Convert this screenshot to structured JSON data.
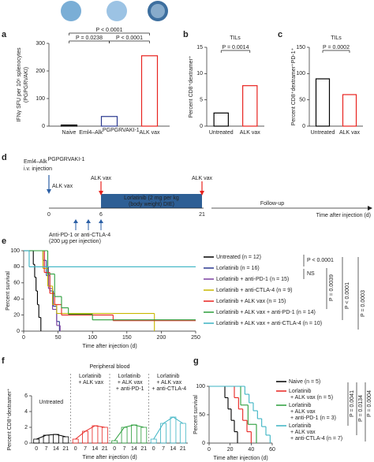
{
  "panel_labels": [
    "a",
    "b",
    "c",
    "d",
    "e",
    "f",
    "g"
  ],
  "schematic": {
    "model": "Eml4–Alk",
    "model_superscript": "PGPGRVAKI-1",
    "injection": "i.v. injection",
    "vax_labels": [
      "ALK vax",
      "ALK vax",
      "ALK vax"
    ],
    "drug": [
      "Lorlatinib (2 mg per kg",
      "(body weight) DIE)"
    ],
    "timeline_days": [
      "0",
      "6",
      "21"
    ],
    "follow_up": "Follow-up",
    "axis_label": "Time after injection (d)",
    "antibody": [
      "Anti-PD-1 or anti-CTLA-4",
      "(200 μg per injection)"
    ]
  },
  "chart_data": [
    {
      "type": "bar",
      "ylabel": "IFNγ SFU per 10⁶ splenocytes",
      "ylabel_sub": "(PGPGRVAKI)",
      "categories": [
        "Naive",
        "Eml4–Alk",
        "ALK vax"
      ],
      "x_label_superscripts": [
        null,
        "PGPGRVAKI-1",
        null
      ],
      "values": [
        4,
        35,
        255
      ],
      "colors": [
        "#000000",
        "#2b3990",
        "#e8231f"
      ],
      "ylim": [
        0,
        300
      ],
      "yticks": [
        0,
        100,
        200,
        300
      ],
      "annotations": [
        "P < 0.0001",
        "P = 0.0238",
        "P < 0.0001"
      ]
    },
    {
      "type": "bar",
      "title": "TILs",
      "ylabel": "Percent CD8⁺dextramer⁺",
      "categories": [
        "Untreated",
        "ALK vax"
      ],
      "values": [
        2.5,
        7.7
      ],
      "colors": [
        "#000000",
        "#e8231f"
      ],
      "ylim": [
        0,
        15
      ],
      "yticks": [
        0,
        5,
        10,
        15
      ],
      "annotations": [
        "P = 0.0014"
      ]
    },
    {
      "type": "bar",
      "title": "TILs",
      "ylabel": "Percent CD8⁺dextramer⁺PD-1⁺",
      "categories": [
        "Untreated",
        "ALK vax"
      ],
      "values": [
        90,
        60
      ],
      "colors": [
        "#000000",
        "#e8231f"
      ],
      "ylim": [
        0,
        150
      ],
      "yticks": [
        0,
        50,
        100,
        150
      ],
      "annotations": [
        "P = 0.0002"
      ]
    },
    {
      "type": "line",
      "step": true,
      "xlabel": "Time after injection (d)",
      "ylabel": "Percent survival",
      "xlim": [
        0,
        250
      ],
      "xticks": [
        0,
        50,
        100,
        150,
        200,
        250
      ],
      "ylim": [
        0,
        100
      ],
      "yticks": [
        0,
        20,
        40,
        60,
        80,
        100
      ],
      "series": [
        {
          "name": "Untreated (n = 12)",
          "color": "#000000",
          "x": [
            0,
            14,
            16,
            18,
            20,
            22,
            25
          ],
          "values": [
            100,
            83,
            67,
            50,
            33,
            17,
            0
          ]
        },
        {
          "name": "Lorlatinib (n = 16)",
          "color": "#2b3990",
          "x": [
            0,
            28,
            33,
            38,
            43,
            48,
            52
          ],
          "values": [
            100,
            88,
            69,
            50,
            31,
            12,
            0
          ]
        },
        {
          "name": "Lorlatinib + anti-PD-1 (n = 15)",
          "color": "#7b3fa0",
          "x": [
            0,
            30,
            36,
            42,
            48,
            53
          ],
          "values": [
            100,
            80,
            53,
            27,
            7,
            0
          ]
        },
        {
          "name": "Lorlatinib + anti-CTLA-4 (n = 9)",
          "color": "#c9b800",
          "x": [
            0,
            28,
            35,
            42,
            48,
            190
          ],
          "values": [
            100,
            78,
            56,
            33,
            22,
            0
          ]
        },
        {
          "name": "Lorlatinib + ALK vax (n = 15)",
          "color": "#e8231f",
          "x": [
            0,
            30,
            38,
            45,
            55,
            130,
            250
          ],
          "values": [
            100,
            73,
            47,
            33,
            20,
            13,
            13
          ]
        },
        {
          "name": "Lorlatinib + ALK vax + anti-PD-1 (n = 14)",
          "color": "#2a9d3a",
          "x": [
            0,
            35,
            45,
            55,
            65,
            100,
            250
          ],
          "values": [
            100,
            71,
            43,
            29,
            21,
            14,
            14
          ]
        },
        {
          "name": "Lorlatinib + ALK vax + anti-CTLA-4 (n = 10)",
          "color": "#3bb3c3",
          "x": [
            0,
            8,
            250
          ],
          "values": [
            100,
            80,
            80
          ]
        }
      ],
      "annotations": [
        "P < 0.0001",
        "NS",
        "P = 0.0039",
        "P < 0.0001",
        "P = 0.0003"
      ]
    },
    {
      "type": "bar",
      "subtitle": "Peripheral blood",
      "ylabel": "Percent CD8⁺dextramer⁺",
      "xlabel": "Time after injection (d)",
      "categories": [
        "0",
        "7",
        "14",
        "21"
      ],
      "ylim": [
        0,
        6
      ],
      "yticks": [
        0,
        2,
        4,
        6
      ],
      "series": [
        {
          "name": "Untreated",
          "color": "#000000",
          "values": [
            0.5,
            1.0,
            1.1,
            0.8
          ]
        },
        {
          "name": "Lorlatinib + ALK vax",
          "color": "#e8231f",
          "values": [
            0.5,
            1.5,
            2.2,
            2.0
          ]
        },
        {
          "name": "Lorlatinib + ALK vax + anti-PD-1",
          "color": "#2a9d3a",
          "values": [
            0.3,
            2.0,
            2.3,
            2.0
          ]
        },
        {
          "name": "Lorlatinib + ALK vax + anti-CTLA-4",
          "color": "#3bb3c3",
          "values": [
            0.5,
            2.5,
            3.3,
            2.5
          ]
        }
      ]
    },
    {
      "type": "line",
      "step": true,
      "xlabel": "Time after injection (d)",
      "ylabel": "Percent survival",
      "xlim": [
        0,
        60
      ],
      "xticks": [
        0,
        20,
        40,
        60
      ],
      "ylim": [
        0,
        100
      ],
      "yticks": [
        0,
        50,
        100
      ],
      "series": [
        {
          "name": "Naive (n = 5)",
          "color": "#000000",
          "x": [
            0,
            15,
            18,
            21,
            24,
            27
          ],
          "values": [
            100,
            80,
            60,
            40,
            20,
            0
          ]
        },
        {
          "name": "Lorlatinib + ALK vax (n = 5)",
          "color": "#e8231f",
          "x": [
            0,
            24,
            28,
            32,
            36,
            40
          ],
          "values": [
            100,
            80,
            60,
            40,
            20,
            0
          ]
        },
        {
          "name": "Lorlatinib + ALK vax + anti-PD-1 (n = 3)",
          "color": "#2a9d3a",
          "x": [
            0,
            30,
            37,
            45
          ],
          "values": [
            100,
            67,
            33,
            0
          ]
        },
        {
          "name": "Lorlatinib + ALK vax + anti-CTLA-4 (n = 7)",
          "color": "#3bb3c3",
          "x": [
            0,
            34,
            38,
            42,
            46,
            50,
            54,
            58
          ],
          "values": [
            100,
            86,
            71,
            57,
            43,
            29,
            14,
            0
          ]
        }
      ],
      "annotations": [
        "P = 0.0041",
        "P = 0.0134",
        "P = 0.0004"
      ]
    }
  ]
}
